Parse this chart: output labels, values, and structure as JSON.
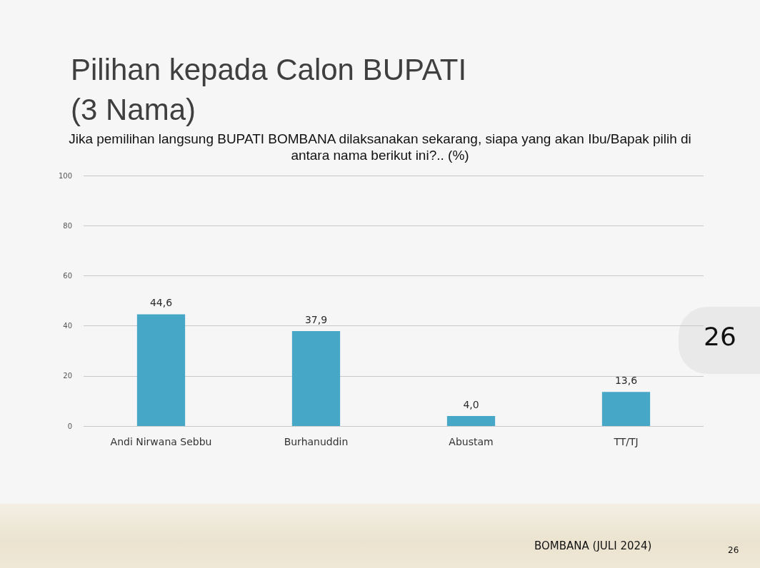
{
  "chart_data": {
    "type": "bar",
    "title": "Pilihan kepada Calon BUPATI (3 Nama)",
    "subtitle": "Jika pemilihan langsung BUPATI BOMBANA dilaksanakan sekarang, siapa yang akan Ibu/Bapak pilih di antara nama berikut ini?.. (%)",
    "categories": [
      "Andi Nirwana Sebbu",
      "Burhanuddin",
      "Abustam",
      "TT/TJ"
    ],
    "values": [
      44.6,
      37.9,
      4.0,
      13.6
    ],
    "value_labels": [
      "44,6",
      "37,9",
      "4,0",
      "13,6"
    ],
    "color": "#47a7c7",
    "ylim": [
      0,
      100
    ],
    "yticks": [
      0,
      20,
      40,
      60,
      80,
      100
    ],
    "grid": "y",
    "annotations": [
      "BOMBANA (JULI 2024)",
      "26",
      "26"
    ]
  }
}
